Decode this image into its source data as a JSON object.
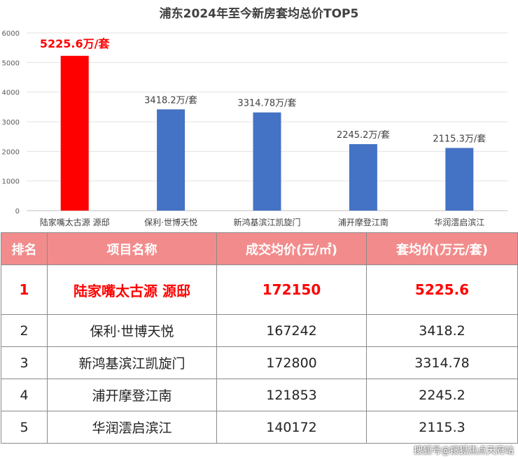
{
  "chart_data": {
    "type": "bar",
    "title": "浦东2024年至今新房套均总价TOP5",
    "categories": [
      "陆家嘴太古源 源邸",
      "保利·世博天悦",
      "新鸿基滨江凯旋门",
      "浦开摩登江南",
      "华润澐启滨江"
    ],
    "values": [
      5225.6,
      3418.2,
      3314.78,
      2245.2,
      2115.3
    ],
    "data_labels": [
      "5225.6万/套",
      "3418.2万/套",
      "3314.78万/套",
      "2245.2万/套",
      "2115.3万/套"
    ],
    "bar_colors": [
      "#ff0000",
      "#4472c4",
      "#4472c4",
      "#4472c4",
      "#4472c4"
    ],
    "ylim": [
      0,
      6000
    ],
    "yticks": [
      0,
      1000,
      2000,
      3000,
      4000,
      5000,
      6000
    ],
    "xlabel": "",
    "ylabel": "",
    "grid": true
  },
  "table": {
    "header_bg": "#f28c8c",
    "highlight_color": "#ff0000",
    "headers": [
      "排名",
      "项目名称",
      "成交均价(元/㎡)",
      "套均价(万元/套)"
    ],
    "rows": [
      [
        "1",
        "陆家嘴太古源 源邸",
        "172150",
        "5225.6"
      ],
      [
        "2",
        "保利·世博天悦",
        "167242",
        "3418.2"
      ],
      [
        "3",
        "新鸿基滨江凯旋门",
        "172800",
        "3314.78"
      ],
      [
        "4",
        "浦开摩登江南",
        "121853",
        "2245.2"
      ],
      [
        "5",
        "华润澐启滨江",
        "140172",
        "2115.3"
      ]
    ]
  },
  "watermark": "搜狐号@搜狐焦点天府站"
}
